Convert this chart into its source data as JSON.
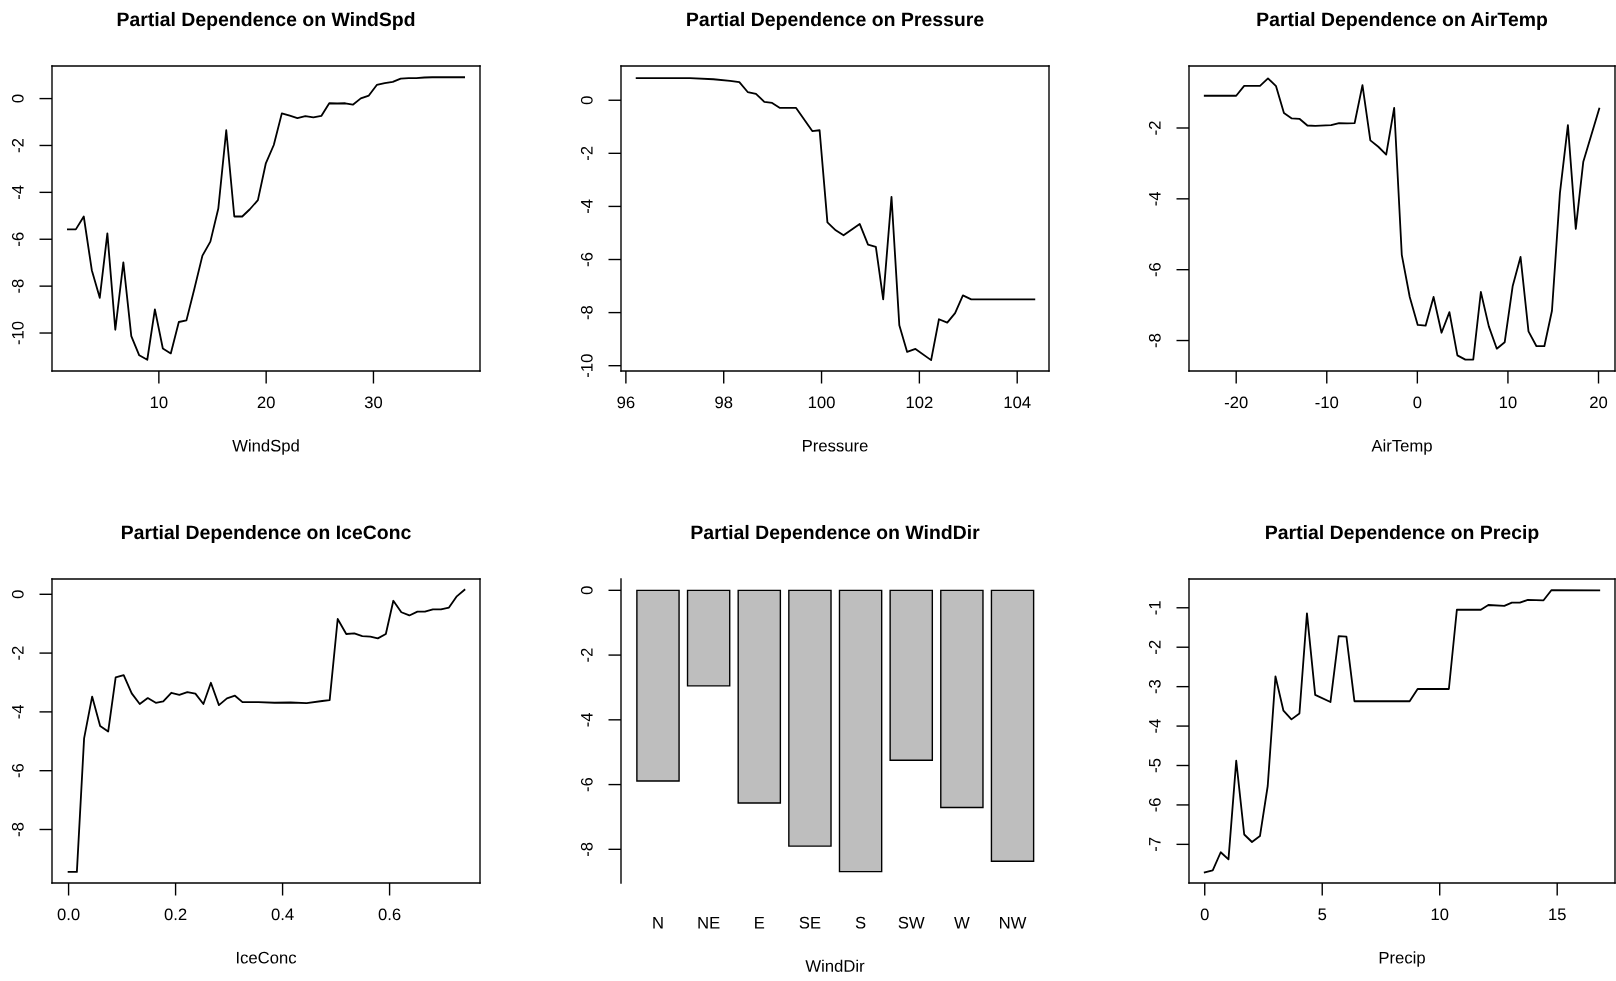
{
  "chart_data": [
    {
      "type": "line",
      "title": "Partial Dependence on WindSpd",
      "xlabel": "WindSpd",
      "color": "#000000",
      "x": [
        1.52,
        2.26,
        3.0,
        3.75,
        4.49,
        5.2,
        5.94,
        6.69,
        7.43,
        8.17,
        8.92,
        9.63,
        10.37,
        11.11,
        11.86,
        12.57,
        13.31,
        14.06,
        14.8,
        15.54,
        16.28,
        17.03,
        17.77,
        18.48,
        19.23,
        19.97,
        20.71,
        21.46,
        22.2,
        22.91,
        23.65,
        24.4,
        25.14,
        25.88,
        26.63,
        27.37,
        28.08,
        28.82,
        29.57,
        30.31,
        31.05,
        31.8,
        32.54,
        33.28,
        33.99,
        34.74,
        35.48,
        36.22,
        36.97,
        38.45
      ],
      "values": [
        -5.58,
        -5.58,
        -5.03,
        -7.32,
        -8.5,
        -5.75,
        -9.86,
        -6.99,
        -10.13,
        -10.95,
        -11.14,
        -8.99,
        -10.66,
        -10.87,
        -9.53,
        -9.46,
        -8.11,
        -6.7,
        -6.1,
        -4.69,
        -1.35,
        -5.03,
        -5.03,
        -4.72,
        -4.33,
        -2.76,
        -1.98,
        -0.63,
        -0.73,
        -0.83,
        -0.75,
        -0.8,
        -0.74,
        -0.2,
        -0.21,
        -0.2,
        -0.26,
        0.01,
        0.13,
        0.58,
        0.66,
        0.71,
        0.85,
        0.87,
        0.87,
        0.9,
        0.91,
        0.91,
        0.91,
        0.91
      ],
      "xlim": [
        0.04,
        39.93
      ],
      "ylim": [
        -11.62,
        1.39
      ],
      "xticks": [
        10,
        20,
        30
      ],
      "yticks": [
        -10,
        -8,
        -6,
        -4,
        -2,
        0
      ]
    },
    {
      "type": "line",
      "title": "Partial Dependence on Pressure",
      "xlabel": "Pressure",
      "color": "#000000",
      "x": [
        96.22,
        97.31,
        97.79,
        98.13,
        98.32,
        98.49,
        98.66,
        98.83,
        98.99,
        99.15,
        99.48,
        99.81,
        99.96,
        100.12,
        100.29,
        100.45,
        100.78,
        100.95,
        101.11,
        101.26,
        101.43,
        101.59,
        101.75,
        101.92,
        102.24,
        102.4,
        102.57,
        102.73,
        102.89,
        103.06,
        104.35
      ],
      "values": [
        0.83,
        0.83,
        0.79,
        0.73,
        0.68,
        0.31,
        0.24,
        -0.06,
        -0.1,
        -0.29,
        -0.29,
        -1.16,
        -1.13,
        -4.6,
        -4.9,
        -5.09,
        -4.66,
        -5.44,
        -5.52,
        -7.5,
        -3.64,
        -8.48,
        -9.48,
        -9.37,
        -9.79,
        -8.25,
        -8.38,
        -8.02,
        -7.35,
        -7.5,
        -7.5
      ],
      "xlim": [
        95.9,
        104.65
      ],
      "ylim": [
        -10.2,
        1.29
      ],
      "xticks": [
        96,
        98,
        100,
        102,
        104
      ],
      "yticks": [
        -10,
        -8,
        -6,
        -4,
        -2,
        0
      ]
    },
    {
      "type": "line",
      "title": "Partial Dependence on AirTemp",
      "xlabel": "AirTemp",
      "color": "#000000",
      "x": [
        -23.47,
        -20.0,
        -19.12,
        -17.37,
        -16.49,
        -15.6,
        -14.73,
        -13.86,
        -13.02,
        -12.14,
        -11.27,
        -9.52,
        -8.64,
        -7.76,
        -6.92,
        -6.06,
        -5.19,
        -4.31,
        -3.44,
        -2.56,
        -1.72,
        -0.84,
        0.04,
        0.91,
        1.79,
        2.67,
        3.54,
        4.42,
        5.3,
        6.17,
        7.01,
        7.89,
        8.77,
        9.64,
        10.52,
        11.39,
        12.27,
        13.15,
        14.02,
        14.86,
        15.74,
        16.62,
        17.49,
        18.32,
        20.08
      ],
      "values": [
        -1.09,
        -1.09,
        -0.81,
        -0.81,
        -0.6,
        -0.82,
        -1.58,
        -1.73,
        -1.74,
        -1.93,
        -1.94,
        -1.92,
        -1.86,
        -1.87,
        -1.86,
        -0.79,
        -2.35,
        -2.53,
        -2.75,
        -1.43,
        -5.58,
        -6.77,
        -7.56,
        -7.58,
        -6.77,
        -7.78,
        -7.2,
        -8.42,
        -8.54,
        -8.54,
        -6.63,
        -7.6,
        -8.23,
        -8.05,
        -6.47,
        -5.64,
        -7.74,
        -8.16,
        -8.16,
        -7.16,
        -3.84,
        -1.92,
        -4.85,
        -2.95,
        -1.45
      ],
      "xlim": [
        -25.21,
        21.82
      ],
      "ylim": [
        -8.86,
        -0.25
      ],
      "xticks": [
        -20,
        -10,
        0,
        10,
        20
      ],
      "yticks": [
        -8,
        -6,
        -4,
        -2
      ]
    },
    {
      "type": "line",
      "title": "Partial Dependence on IceConc",
      "xlabel": "IceConc",
      "color": "#000000",
      "x": [
        0.0,
        0.0155,
        0.029,
        0.044,
        0.059,
        0.074,
        0.088,
        0.103,
        0.118,
        0.133,
        0.148,
        0.163,
        0.177,
        0.192,
        0.207,
        0.222,
        0.237,
        0.252,
        0.266,
        0.281,
        0.296,
        0.311,
        0.325,
        0.355,
        0.385,
        0.415,
        0.445,
        0.474,
        0.488,
        0.503,
        0.519,
        0.534,
        0.549,
        0.564,
        0.578,
        0.593,
        0.607,
        0.622,
        0.637,
        0.652,
        0.666,
        0.681,
        0.696,
        0.711,
        0.725,
        0.74
      ],
      "values": [
        -9.44,
        -9.44,
        -4.9,
        -3.48,
        -4.48,
        -4.67,
        -2.83,
        -2.75,
        -3.37,
        -3.73,
        -3.53,
        -3.69,
        -3.64,
        -3.35,
        -3.42,
        -3.33,
        -3.38,
        -3.73,
        -3.01,
        -3.77,
        -3.54,
        -3.45,
        -3.67,
        -3.67,
        -3.69,
        -3.68,
        -3.7,
        -3.63,
        -3.6,
        -0.84,
        -1.35,
        -1.33,
        -1.42,
        -1.44,
        -1.5,
        -1.35,
        -0.22,
        -0.61,
        -0.72,
        -0.59,
        -0.59,
        -0.51,
        -0.51,
        -0.45,
        -0.08,
        0.15
      ],
      "xlim": [
        -0.031,
        0.769
      ],
      "ylim": [
        -9.82,
        0.52
      ],
      "xticks": [
        {
          "value": 0,
          "label": "0.0"
        },
        0.2,
        0.4,
        0.6
      ],
      "yticks": [
        -8,
        -6,
        -4,
        -2,
        0
      ]
    },
    {
      "type": "bar",
      "title": "Partial Dependence on WindDir",
      "xlabel": "WindDir",
      "color": "#bebebe",
      "categories": [
        "N",
        "NE",
        "E",
        "SE",
        "S",
        "SW",
        "W",
        "NW"
      ],
      "values": [
        -5.89,
        -2.95,
        -6.57,
        -7.9,
        -8.69,
        -5.25,
        -6.71,
        -8.37
      ],
      "ylim": [
        -9.04,
        0.35
      ],
      "yticks": [
        -8,
        -6,
        -4,
        -2,
        0
      ]
    },
    {
      "type": "line",
      "title": "Partial Dependence on Precip",
      "xlabel": "Precip",
      "color": "#000000",
      "x": [
        0,
        0.34,
        0.68,
        1.01,
        1.34,
        1.68,
        2.01,
        2.35,
        2.68,
        3.01,
        3.35,
        3.69,
        4.03,
        4.35,
        4.7,
        5.35,
        5.7,
        6.03,
        6.37,
        8.72,
        9.06,
        10.39,
        10.73,
        11.75,
        12.07,
        12.75,
        13.07,
        13.41,
        13.75,
        14.42,
        14.76,
        16.79
      ],
      "values": [
        -7.71,
        -7.66,
        -7.2,
        -7.38,
        -4.88,
        -6.75,
        -6.94,
        -6.79,
        -5.52,
        -2.74,
        -3.61,
        -3.83,
        -3.68,
        -1.14,
        -3.21,
        -3.39,
        -1.72,
        -1.73,
        -3.37,
        -3.37,
        -3.06,
        -3.06,
        -1.05,
        -1.05,
        -0.93,
        -0.95,
        -0.87,
        -0.87,
        -0.8,
        -0.81,
        -0.55,
        -0.56
      ],
      "xlim": [
        -0.67,
        17.46
      ],
      "ylim": [
        -7.98,
        -0.27
      ],
      "xticks": [
        0,
        5,
        10,
        15
      ],
      "yticks": [
        -7,
        -6,
        -5,
        -4,
        -3,
        -2,
        -1
      ]
    }
  ]
}
